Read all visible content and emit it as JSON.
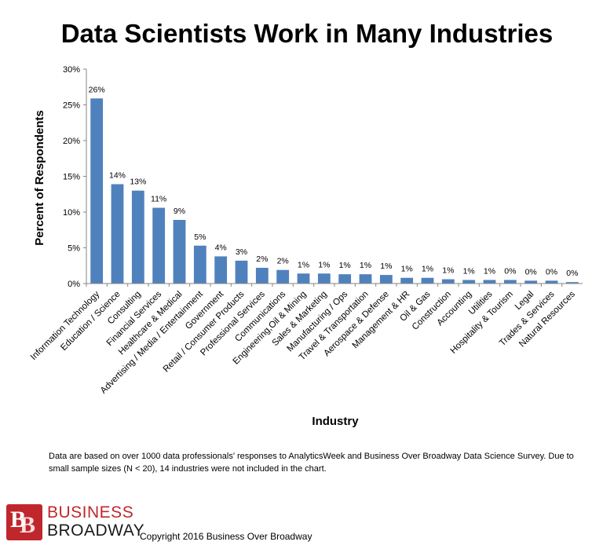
{
  "chart_data": {
    "type": "bar",
    "title": "Data Scientists Work in Many Industries",
    "xlabel": "Industry",
    "ylabel": "Percent of Respondents",
    "ylim": [
      0,
      30
    ],
    "yticks": [
      "0%",
      "5%",
      "10%",
      "15%",
      "20%",
      "25%",
      "30%"
    ],
    "bar_color": "#4f81bd",
    "categories": [
      "Information Technology",
      "Education / Science",
      "Consulting",
      "Financial Services",
      "Healthcare & Medical",
      "Advertising / Media / Entertainment",
      "Government",
      "Retail / Consumer Products",
      "Professional Services",
      "Communications",
      "Engineering,Oil & Mining",
      "Sales & Marketing",
      "Manufacturing / Ops",
      "Travel & Transportation",
      "Aerospace & Defense",
      "Management & HR",
      "Oil & Gas",
      "Construction",
      "Accounting",
      "Utilities",
      "Hospitality & Tourism",
      "Legal",
      "Trades & Services",
      "Natural Resources"
    ],
    "values": [
      25.9,
      13.9,
      13.0,
      10.6,
      8.9,
      5.3,
      3.8,
      3.2,
      2.2,
      1.9,
      1.4,
      1.4,
      1.3,
      1.3,
      1.2,
      0.8,
      0.8,
      0.6,
      0.5,
      0.5,
      0.5,
      0.4,
      0.4,
      0.2
    ],
    "data_labels": [
      "26%",
      "14%",
      "13%",
      "11%",
      "9%",
      "5%",
      "4%",
      "3%",
      "2%",
      "2%",
      "1%",
      "1%",
      "1%",
      "1%",
      "1%",
      "1%",
      "1%",
      "1%",
      "1%",
      "1%",
      "0%",
      "0%",
      "0%",
      "0%"
    ]
  },
  "footnote": "Data are based on over 1000 data professionals' responses to AnalyticsWeek and Business Over Broadway Data Science Survey. Due to small sample sizes (N < 20), 14 industries were not included in the chart.",
  "logo": {
    "line1": "BUSINESS",
    "line2": "BROADWAY",
    "mark": "BB"
  },
  "copyright": "Copyright 2016 Business Over Broadway"
}
